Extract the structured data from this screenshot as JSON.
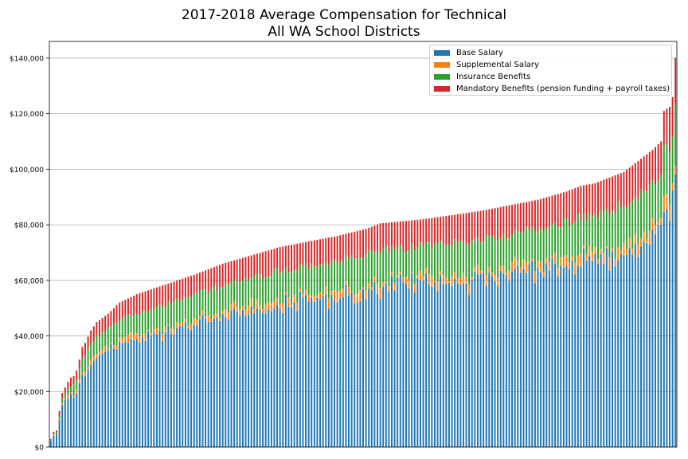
{
  "chart_data": {
    "type": "bar",
    "stacked": true,
    "title": "2017-2018 Average Compensation for Technical\nAll WA School Districts",
    "title_lines": [
      "2017-2018 Average Compensation for Technical",
      "All WA School Districts"
    ],
    "xlabel": "",
    "ylabel": "",
    "ylim": [
      0,
      146000
    ],
    "yticks": [
      0,
      20000,
      40000,
      60000,
      80000,
      100000,
      120000,
      140000
    ],
    "ytick_labels": [
      "$0",
      "$20,000",
      "$40,000",
      "$60,000",
      "$80,000",
      "$100,000",
      "$120,000",
      "$140,000"
    ],
    "grid": "horizontal",
    "legend_position": "top-right",
    "categories_note": "districts sorted by total compensation; x tick labels not shown",
    "series": [
      {
        "name": "Base Salary",
        "color": "#1f77b4"
      },
      {
        "name": "Supplemental Salary",
        "color": "#ff7f0e"
      },
      {
        "name": "Insurance Benefits",
        "color": "#2ca02c"
      },
      {
        "name": "Mandatory Benefits (pension funding + payroll taxes)",
        "color": "#d62728"
      }
    ],
    "total_profile": [
      [
        0,
        3000
      ],
      [
        1,
        5500
      ],
      [
        2,
        6000
      ],
      [
        3,
        13000
      ],
      [
        4,
        19500
      ],
      [
        5,
        21500
      ],
      [
        6,
        23500
      ],
      [
        7,
        25000
      ],
      [
        8,
        25500
      ],
      [
        9,
        27500
      ],
      [
        10,
        31500
      ],
      [
        11,
        36000
      ],
      [
        12,
        37500
      ],
      [
        14,
        42000
      ],
      [
        16,
        45000
      ],
      [
        20,
        48000
      ],
      [
        24,
        52000
      ],
      [
        30,
        55000
      ],
      [
        40,
        58500
      ],
      [
        50,
        62000
      ],
      [
        60,
        66000
      ],
      [
        70,
        69000
      ],
      [
        80,
        72000
      ],
      [
        90,
        74000
      ],
      [
        100,
        76000
      ],
      [
        110,
        78500
      ],
      [
        115,
        80500
      ],
      [
        130,
        82000
      ],
      [
        140,
        83500
      ],
      [
        150,
        85000
      ],
      [
        160,
        87000
      ],
      [
        170,
        89000
      ],
      [
        175,
        90500
      ],
      [
        180,
        92000
      ],
      [
        185,
        94000
      ],
      [
        190,
        95000
      ],
      [
        195,
        97000
      ],
      [
        200,
        99000
      ],
      [
        205,
        103000
      ],
      [
        210,
        107000
      ],
      [
        212,
        109000
      ],
      [
        213,
        110000
      ],
      [
        214,
        121000
      ],
      [
        216,
        122500
      ],
      [
        217,
        126000
      ],
      [
        218,
        140000
      ]
    ],
    "n_bars": 219,
    "fractions": {
      "base": 0.72,
      "supplemental": 0.02,
      "insurance": 0.14,
      "mandatory": 0.12
    }
  }
}
